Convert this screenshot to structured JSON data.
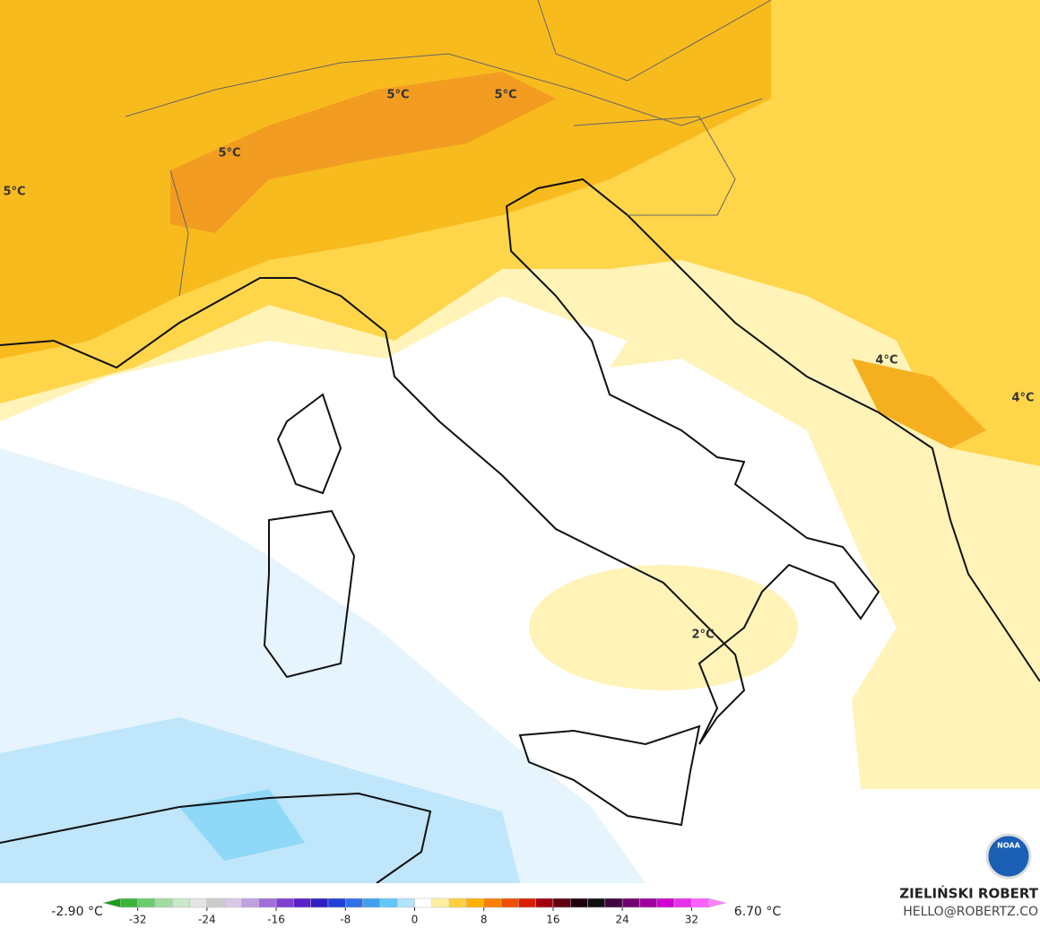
{
  "map": {
    "contour_labels": [
      "5°C",
      "5°C",
      "5°C",
      "5°C",
      "4°C",
      "4°C",
      "2°C"
    ],
    "colorbar": {
      "min_label": "-2.90 °C",
      "max_label": "6.70 °C",
      "lim": [
        -36,
        36
      ],
      "ticks": [
        -32,
        -24,
        -16,
        -8,
        0,
        8,
        16,
        24,
        32
      ],
      "colors": [
        "#1a9e1a",
        "#3cb43c",
        "#6ccc6c",
        "#a0dca0",
        "#c8e8c8",
        "#e4e4e4",
        "#cccccc",
        "#d8c8e8",
        "#c0a0e0",
        "#a070d8",
        "#8040d0",
        "#5a20c8",
        "#3020c0",
        "#2040d8",
        "#3070e8",
        "#40a0f0",
        "#60c8f8",
        "#b0e4fc",
        "#ffffff",
        "#fff0a0",
        "#ffd040",
        "#ffb000",
        "#f88000",
        "#f05000",
        "#d82000",
        "#a00010",
        "#600010",
        "#200010",
        "#101010",
        "#400040",
        "#700070",
        "#a000a0",
        "#d000d0",
        "#e830e8",
        "#ff60ff",
        "#ff80ff"
      ]
    },
    "author": "ZIELIŃSKI ROBERT",
    "contact": "HELLO@ROBERTZ.CO",
    "logo": "NOAA"
  }
}
